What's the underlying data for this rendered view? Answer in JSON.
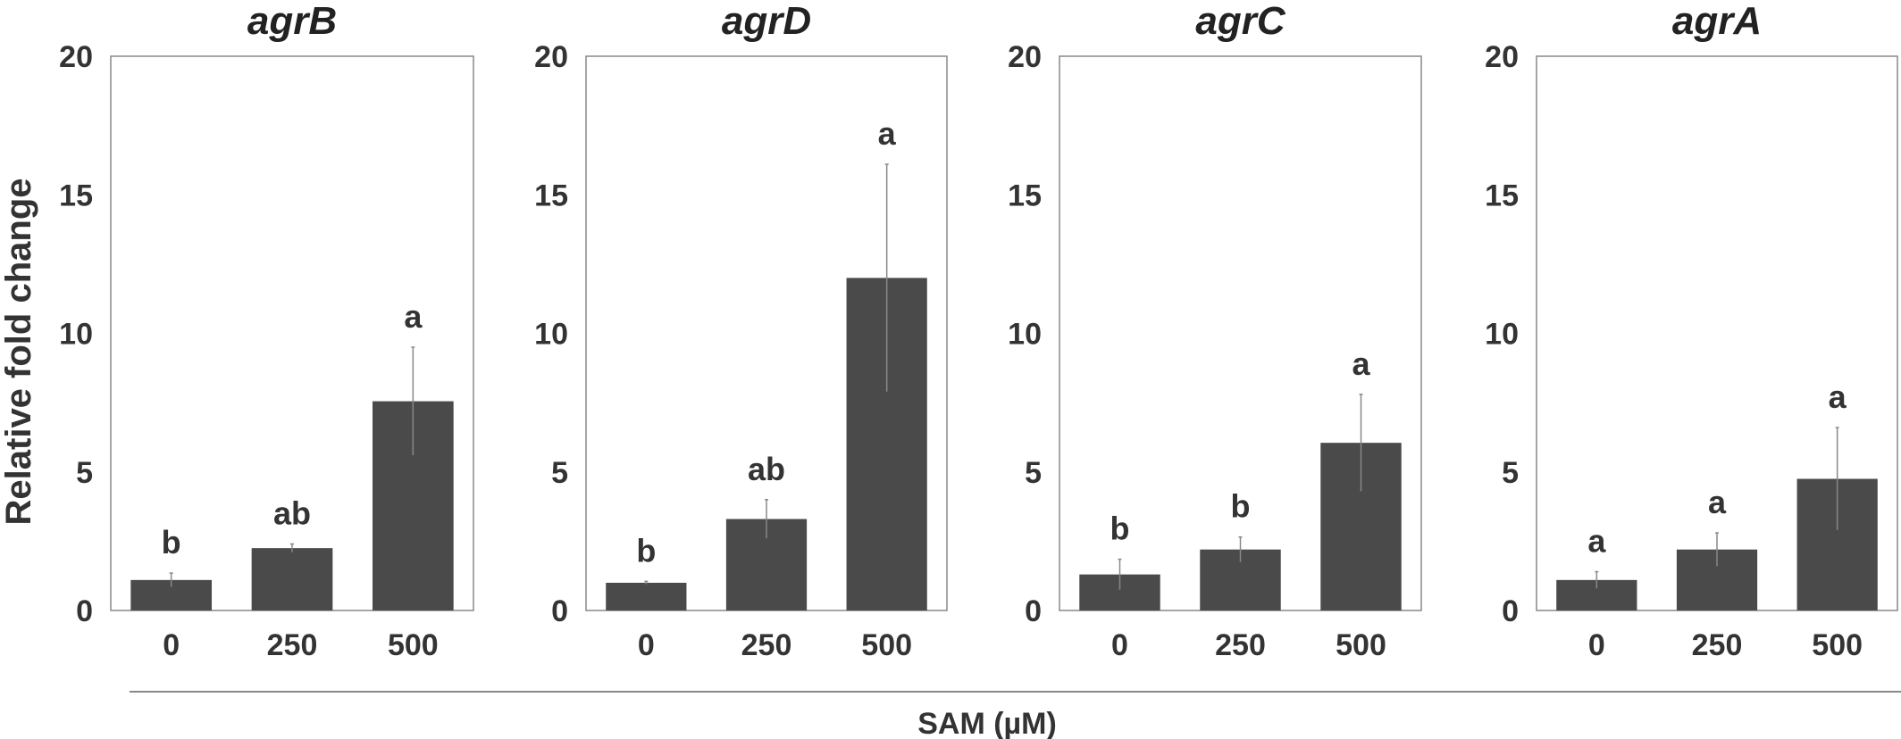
{
  "figure": {
    "ylabel": "Relative fold change",
    "xlabel": "SAM (µM)"
  },
  "chart_data": [
    {
      "type": "bar",
      "title": "agrB",
      "categories": [
        "0",
        "250",
        "500"
      ],
      "values": [
        1.1,
        2.25,
        7.55
      ],
      "errors": [
        0.25,
        0.15,
        1.95
      ],
      "significance": [
        "b",
        "ab",
        "a"
      ],
      "ylim": [
        0,
        20
      ],
      "yticks": [
        0,
        5,
        10,
        15,
        20
      ],
      "bar_color": "#4a4a4a"
    },
    {
      "type": "bar",
      "title": "agrD",
      "categories": [
        "0",
        "250",
        "500"
      ],
      "values": [
        1.0,
        3.3,
        12.0
      ],
      "errors": [
        0.05,
        0.7,
        4.1
      ],
      "significance": [
        "b",
        "ab",
        "a"
      ],
      "ylim": [
        0,
        20
      ],
      "yticks": [
        0,
        5,
        10,
        15,
        20
      ],
      "bar_color": "#4a4a4a"
    },
    {
      "type": "bar",
      "title": "agrC",
      "categories": [
        "0",
        "250",
        "500"
      ],
      "values": [
        1.3,
        2.2,
        6.05
      ],
      "errors": [
        0.55,
        0.45,
        1.75
      ],
      "significance": [
        "b",
        "b",
        "a"
      ],
      "ylim": [
        0,
        20
      ],
      "yticks": [
        0,
        5,
        10,
        15,
        20
      ],
      "bar_color": "#4a4a4a"
    },
    {
      "type": "bar",
      "title": "agrA",
      "categories": [
        "0",
        "250",
        "500"
      ],
      "values": [
        1.1,
        2.2,
        4.75
      ],
      "errors": [
        0.3,
        0.6,
        1.85
      ],
      "significance": [
        "a",
        "a",
        "a"
      ],
      "ylim": [
        0,
        20
      ],
      "yticks": [
        0,
        5,
        10,
        15,
        20
      ],
      "bar_color": "#4a4a4a"
    }
  ]
}
